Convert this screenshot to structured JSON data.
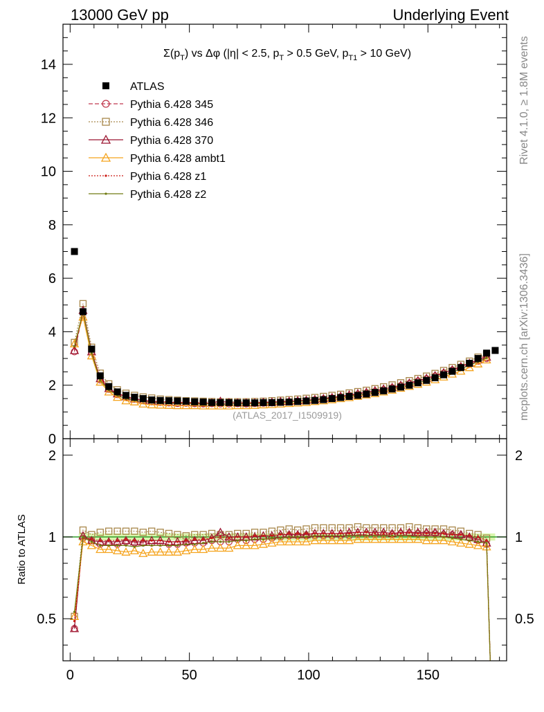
{
  "header": {
    "left": "13000 GeV pp",
    "right": "Underlying Event"
  },
  "side_labels": {
    "rivet": "Rivet 4.1.0, ≥ 1.8M events",
    "mcplots": "mcplots.cern.ch [arXiv:1306.3436]"
  },
  "watermark": "(ATLAS_2017_I1509919)",
  "title": {
    "sigma": "Σ(p",
    "sub1": "T",
    "mid": ") vs Δφ (|η| < 2.5, p",
    "sub2": "T",
    "mid2": " > 0.5 GeV, p",
    "sub3": "T1",
    "end": " > 10 GeV)"
  },
  "colors": {
    "ATLAS": "#000000",
    "p345": "#c0384d",
    "p346": "#a8874a",
    "p370": "#9b1530",
    "ambt1": "#f5a31c",
    "z1": "#cc1a14",
    "z2": "#707a10",
    "band": "#c9f28a",
    "refline": "#2e9b27"
  },
  "chart_data": [
    {
      "type": "scatter",
      "title": "Σ(pT) vs Δφ (|η| < 2.5, pT > 0.5 GeV, pT1 > 10 GeV)",
      "xlabel": "",
      "ylabel": "",
      "xlim": [
        -3,
        183
      ],
      "ylim": [
        0,
        15.5
      ],
      "x_ticks": [
        "0",
        "50",
        "100",
        "150"
      ],
      "y_ticks": [
        "0",
        "2",
        "4",
        "6",
        "8",
        "10",
        "12",
        "14"
      ],
      "legend": {
        "position": "top-left",
        "entries": [
          "ATLAS",
          "Pythia 6.428 345",
          "Pythia 6.428 346",
          "Pythia 6.428 370",
          "Pythia 6.428 ambt1",
          "Pythia 6.428 z1",
          "Pythia 6.428 z2"
        ]
      },
      "x": [
        1.8,
        5.4,
        9.0,
        12.6,
        16.2,
        19.8,
        23.4,
        27.0,
        30.6,
        34.2,
        37.8,
        41.4,
        45.0,
        48.6,
        52.2,
        55.8,
        59.4,
        63.0,
        66.6,
        70.2,
        73.8,
        77.4,
        81.0,
        84.6,
        88.2,
        91.8,
        95.4,
        99.0,
        102.6,
        106.2,
        109.8,
        113.4,
        117.0,
        120.6,
        124.2,
        127.8,
        131.4,
        135.0,
        138.6,
        142.2,
        145.8,
        149.4,
        153.0,
        156.6,
        160.2,
        163.8,
        167.4,
        171.0,
        174.6,
        178.2
      ],
      "series": [
        {
          "name": "ATLAS",
          "values": [
            7.0,
            4.75,
            3.35,
            2.35,
            1.95,
            1.75,
            1.62,
            1.55,
            1.5,
            1.45,
            1.43,
            1.42,
            1.41,
            1.4,
            1.38,
            1.37,
            1.35,
            1.35,
            1.35,
            1.34,
            1.34,
            1.34,
            1.35,
            1.35,
            1.36,
            1.37,
            1.39,
            1.41,
            1.43,
            1.46,
            1.5,
            1.54,
            1.58,
            1.62,
            1.67,
            1.73,
            1.79,
            1.86,
            1.93,
            2.0,
            2.09,
            2.18,
            2.28,
            2.39,
            2.52,
            2.66,
            2.82,
            3.0,
            3.2,
            3.3
          ]
        },
        {
          "name": "Pythia 6.428 345",
          "values": [
            3.25,
            4.7,
            3.25,
            2.2,
            1.85,
            1.65,
            1.55,
            1.48,
            1.42,
            1.38,
            1.36,
            1.34,
            1.32,
            1.33,
            1.31,
            1.3,
            1.31,
            1.3,
            1.3,
            1.31,
            1.3,
            1.32,
            1.33,
            1.34,
            1.36,
            1.38,
            1.4,
            1.42,
            1.45,
            1.48,
            1.52,
            1.56,
            1.6,
            1.65,
            1.7,
            1.76,
            1.83,
            1.9,
            1.98,
            2.06,
            2.15,
            2.24,
            2.34,
            2.45,
            2.56,
            2.68,
            2.78,
            2.9,
            3.0
          ]
        },
        {
          "name": "Pythia 6.428 346",
          "values": [
            3.6,
            5.05,
            3.42,
            2.45,
            2.05,
            1.83,
            1.7,
            1.62,
            1.56,
            1.52,
            1.48,
            1.46,
            1.44,
            1.42,
            1.41,
            1.4,
            1.39,
            1.38,
            1.38,
            1.38,
            1.38,
            1.39,
            1.4,
            1.42,
            1.44,
            1.46,
            1.48,
            1.51,
            1.54,
            1.58,
            1.62,
            1.66,
            1.71,
            1.76,
            1.81,
            1.87,
            1.94,
            2.01,
            2.09,
            2.17,
            2.25,
            2.34,
            2.44,
            2.55,
            2.66,
            2.78,
            2.9,
            3.05,
            3.15
          ]
        },
        {
          "name": "Pythia 6.428 370",
          "values": [
            3.3,
            4.8,
            3.25,
            2.25,
            1.88,
            1.68,
            1.57,
            1.49,
            1.44,
            1.4,
            1.38,
            1.36,
            1.35,
            1.35,
            1.34,
            1.33,
            1.34,
            1.4,
            1.35,
            1.34,
            1.34,
            1.34,
            1.36,
            1.37,
            1.39,
            1.4,
            1.42,
            1.44,
            1.47,
            1.5,
            1.54,
            1.59,
            1.64,
            1.69,
            1.74,
            1.8,
            1.86,
            1.92,
            2.0,
            2.08,
            2.17,
            2.26,
            2.36,
            2.47,
            2.58,
            2.7,
            2.82,
            2.95,
            3.05
          ]
        },
        {
          "name": "Pythia 6.428 ambt1",
          "values": [
            3.55,
            4.55,
            3.1,
            2.12,
            1.75,
            1.55,
            1.42,
            1.38,
            1.3,
            1.27,
            1.26,
            1.25,
            1.24,
            1.24,
            1.24,
            1.23,
            1.23,
            1.23,
            1.23,
            1.24,
            1.24,
            1.25,
            1.27,
            1.28,
            1.3,
            1.32,
            1.34,
            1.36,
            1.39,
            1.42,
            1.46,
            1.5,
            1.54,
            1.59,
            1.64,
            1.69,
            1.75,
            1.82,
            1.89,
            1.96,
            2.04,
            2.12,
            2.21,
            2.31,
            2.42,
            2.53,
            2.66,
            2.8,
            2.95
          ]
        },
        {
          "name": "Pythia 6.428 z1",
          "values": [
            3.4,
            4.7,
            3.28,
            2.28,
            1.9,
            1.7,
            1.58,
            1.5,
            1.45,
            1.41,
            1.39,
            1.37,
            1.36,
            1.36,
            1.35,
            1.34,
            1.34,
            1.35,
            1.34,
            1.34,
            1.34,
            1.35,
            1.36,
            1.37,
            1.39,
            1.41,
            1.43,
            1.45,
            1.48,
            1.51,
            1.55,
            1.59,
            1.63,
            1.68,
            1.73,
            1.79,
            1.85,
            1.92,
            1.99,
            2.07,
            2.16,
            2.25,
            2.35,
            2.46,
            2.58,
            2.7,
            2.84,
            2.99,
            3.1
          ]
        },
        {
          "name": "Pythia 6.428 z2",
          "values": [
            3.45,
            4.75,
            3.2,
            2.18,
            1.82,
            1.62,
            1.5,
            1.43,
            1.39,
            1.35,
            1.33,
            1.32,
            1.31,
            1.31,
            1.3,
            1.3,
            1.3,
            1.3,
            1.3,
            1.3,
            1.3,
            1.31,
            1.32,
            1.33,
            1.35,
            1.37,
            1.39,
            1.41,
            1.44,
            1.47,
            1.51,
            1.55,
            1.59,
            1.64,
            1.69,
            1.74,
            1.8,
            1.87,
            1.94,
            2.01,
            2.09,
            2.18,
            2.28,
            2.38,
            2.49,
            2.61,
            2.74,
            2.88,
            3.02
          ]
        }
      ]
    },
    {
      "type": "scatter",
      "title": "",
      "xlabel": "",
      "ylabel": "Ratio to ATLAS",
      "xlim": [
        -3,
        183
      ],
      "ylim": [
        0.35,
        2.3
      ],
      "log_y": true,
      "x_ticks": [
        "0",
        "50",
        "100",
        "150"
      ],
      "y_ticks": [
        "0.5",
        "1",
        "2"
      ],
      "reference_line": 1.0,
      "x": [
        1.8,
        5.4,
        9.0,
        12.6,
        16.2,
        19.8,
        23.4,
        27.0,
        30.6,
        34.2,
        37.8,
        41.4,
        45.0,
        48.6,
        52.2,
        55.8,
        59.4,
        63.0,
        66.6,
        70.2,
        73.8,
        77.4,
        81.0,
        84.6,
        88.2,
        91.8,
        95.4,
        99.0,
        102.6,
        106.2,
        109.8,
        113.4,
        117.0,
        120.6,
        124.2,
        127.8,
        131.4,
        135.0,
        138.6,
        142.2,
        145.8,
        149.4,
        153.0,
        156.6,
        160.2,
        163.8,
        167.4,
        171.0,
        174.6
      ],
      "series": [
        {
          "name": "Pythia 6.428 345",
          "values": [
            0.46,
            0.99,
            0.97,
            0.94,
            0.95,
            0.94,
            0.96,
            0.95,
            0.95,
            0.95,
            0.95,
            0.94,
            0.94,
            0.95,
            0.95,
            0.95,
            0.97,
            0.96,
            0.96,
            0.98,
            0.97,
            0.98,
            0.98,
            0.99,
            1.0,
            1.01,
            1.01,
            1.01,
            1.01,
            1.01,
            1.01,
            1.01,
            1.01,
            1.02,
            1.02,
            1.02,
            1.02,
            1.02,
            1.03,
            1.03,
            1.03,
            1.03,
            1.03,
            1.02,
            1.02,
            1.01,
            0.99,
            0.97,
            0.94
          ]
        },
        {
          "name": "Pythia 6.428 346",
          "values": [
            0.51,
            1.06,
            1.02,
            1.04,
            1.05,
            1.05,
            1.05,
            1.05,
            1.04,
            1.05,
            1.04,
            1.03,
            1.02,
            1.01,
            1.02,
            1.02,
            1.03,
            1.02,
            1.02,
            1.03,
            1.03,
            1.04,
            1.04,
            1.05,
            1.06,
            1.07,
            1.06,
            1.07,
            1.08,
            1.08,
            1.08,
            1.08,
            1.08,
            1.09,
            1.08,
            1.08,
            1.08,
            1.08,
            1.08,
            1.09,
            1.08,
            1.07,
            1.07,
            1.07,
            1.06,
            1.05,
            1.03,
            1.02,
            0.99
          ]
        },
        {
          "name": "Pythia 6.428 370",
          "values": [
            0.46,
            1.01,
            0.97,
            0.96,
            0.96,
            0.96,
            0.97,
            0.96,
            0.96,
            0.97,
            0.97,
            0.96,
            0.96,
            0.96,
            0.97,
            0.97,
            0.99,
            1.04,
            1.0,
            1.0,
            1.0,
            1.0,
            1.01,
            1.01,
            1.02,
            1.02,
            1.02,
            1.02,
            1.03,
            1.03,
            1.03,
            1.03,
            1.04,
            1.04,
            1.04,
            1.04,
            1.04,
            1.03,
            1.04,
            1.04,
            1.04,
            1.04,
            1.04,
            1.03,
            1.02,
            1.02,
            1.0,
            0.98,
            0.95
          ]
        },
        {
          "name": "Pythia 6.428 ambt1",
          "values": [
            0.51,
            0.96,
            0.93,
            0.9,
            0.9,
            0.89,
            0.88,
            0.89,
            0.87,
            0.88,
            0.88,
            0.88,
            0.88,
            0.89,
            0.9,
            0.9,
            0.91,
            0.91,
            0.91,
            0.93,
            0.93,
            0.93,
            0.94,
            0.95,
            0.96,
            0.96,
            0.96,
            0.96,
            0.97,
            0.97,
            0.97,
            0.97,
            0.97,
            0.98,
            0.98,
            0.98,
            0.98,
            0.98,
            0.98,
            0.98,
            0.98,
            0.97,
            0.97,
            0.97,
            0.96,
            0.95,
            0.94,
            0.93,
            0.92
          ]
        },
        {
          "name": "Pythia 6.428 z1",
          "values": [
            0.49,
            0.99,
            0.98,
            0.97,
            0.97,
            0.97,
            0.98,
            0.97,
            0.97,
            0.97,
            0.97,
            0.96,
            0.96,
            0.97,
            0.98,
            0.98,
            0.99,
            1.0,
            0.99,
            1.0,
            1.0,
            1.01,
            1.01,
            1.01,
            1.02,
            1.03,
            1.03,
            1.03,
            1.03,
            1.03,
            1.03,
            1.03,
            1.03,
            1.04,
            1.04,
            1.03,
            1.03,
            1.03,
            1.03,
            1.04,
            1.03,
            1.03,
            1.03,
            1.03,
            1.02,
            1.02,
            1.01,
            1.0,
            0.97
          ]
        },
        {
          "name": "Pythia 6.428 z2",
          "values": [
            0.53,
            1.0,
            0.96,
            0.93,
            0.93,
            0.93,
            0.93,
            0.92,
            0.93,
            0.93,
            0.93,
            0.93,
            0.93,
            0.94,
            0.94,
            0.95,
            0.96,
            0.96,
            0.96,
            0.97,
            0.97,
            0.98,
            0.98,
            0.99,
            0.99,
            1.0,
            1.0,
            1.0,
            1.01,
            1.01,
            1.01,
            1.01,
            1.01,
            1.01,
            1.01,
            1.01,
            1.01,
            1.01,
            1.01,
            1.01,
            1.0,
            1.0,
            1.0,
            1.0,
            0.99,
            0.98,
            0.97,
            0.96,
            0.95
          ]
        }
      ]
    }
  ]
}
